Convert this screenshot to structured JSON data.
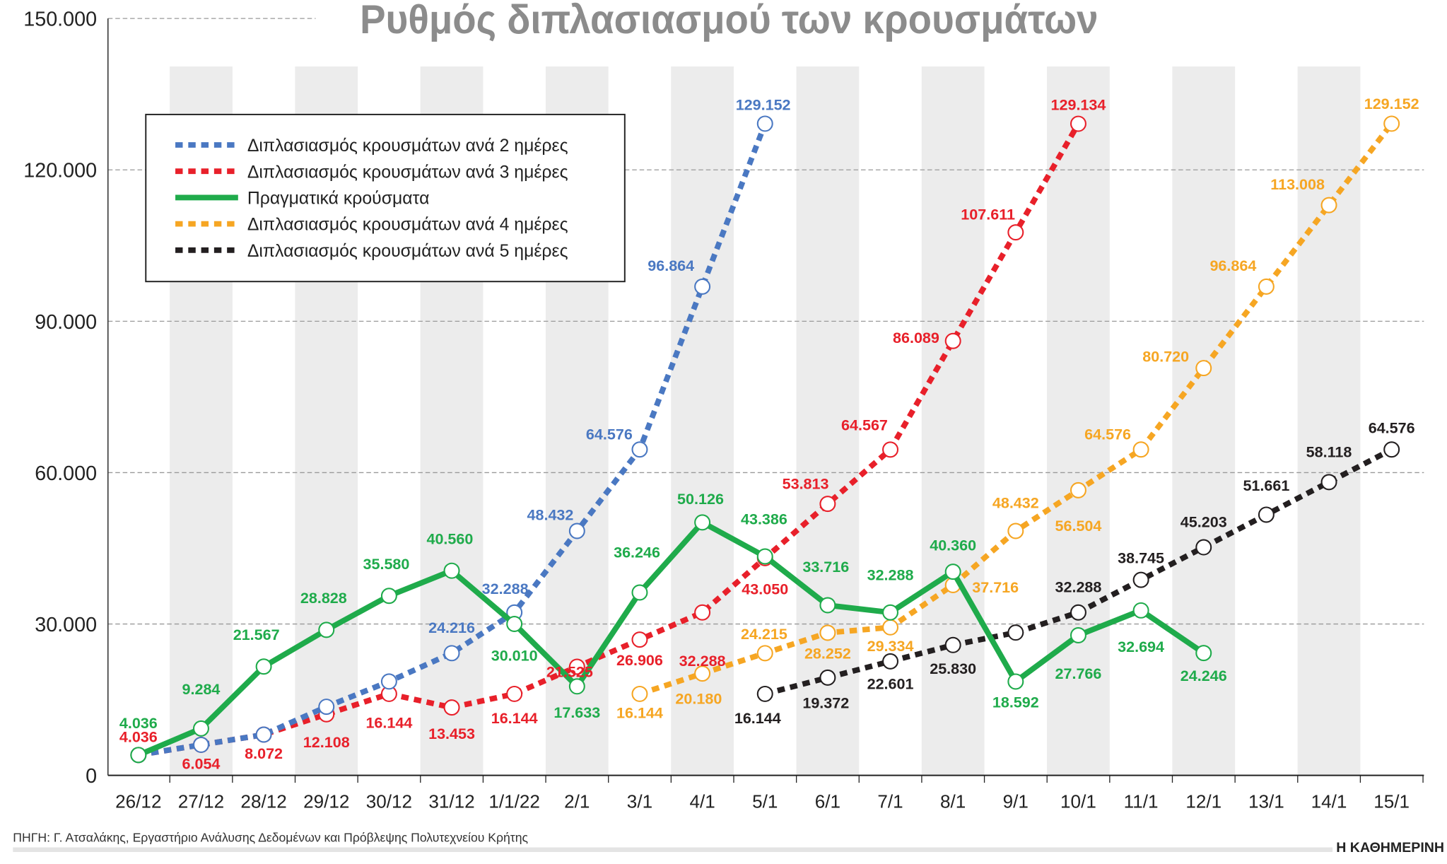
{
  "chart_data": {
    "type": "line",
    "title": "Ρυθμός διπλασιασμού των κρουσμάτων",
    "categories": [
      "26/12",
      "27/12",
      "28/12",
      "29/12",
      "30/12",
      "31/12",
      "1/1/22",
      "2/1",
      "3/1",
      "4/1",
      "5/1",
      "6/1",
      "7/1",
      "8/1",
      "9/1",
      "10/1",
      "11/1",
      "12/1",
      "13/1",
      "14/1",
      "15/1"
    ],
    "ylim": [
      0,
      150000
    ],
    "yticks": [
      0,
      30000,
      60000,
      90000,
      120000,
      150000
    ],
    "ytick_labels": [
      "0",
      "30.000",
      "60.000",
      "90.000",
      "120.000",
      "150.000"
    ],
    "grid": true,
    "legend_position": "top-left",
    "series": [
      {
        "name": "Διπλασιασμός κρουσμάτων ανά 2 ημέρες",
        "color": "#4a78c2",
        "style": "dotted",
        "values": [
          4036,
          6054,
          8072,
          13600,
          18600,
          24216,
          32288,
          48432,
          64576,
          96864,
          129152,
          null,
          null,
          null,
          null,
          null,
          null,
          null,
          null,
          null,
          null
        ],
        "labels": [
          null,
          null,
          null,
          null,
          null,
          "24.216",
          "32.288",
          "48.432",
          "64.576",
          "96.864",
          "129.152",
          null,
          null,
          null,
          null,
          null,
          null,
          null,
          null,
          null,
          null
        ]
      },
      {
        "name": "Διπλασιασμός κρουσμάτων ανά 3 ημέρες",
        "color": "#e8202a",
        "style": "dotted",
        "values": [
          4036,
          6054,
          8072,
          12108,
          16144,
          13453,
          16144,
          21525,
          26906,
          32288,
          43050,
          53813,
          64567,
          86089,
          107611,
          129134,
          null,
          null,
          null,
          null,
          null
        ],
        "labels": [
          "4.036",
          "6.054",
          "8.072",
          "12.108",
          "16.144",
          "13.453",
          "16.144",
          "21.525",
          "26.906",
          "32.288",
          "43.050",
          "53.813",
          "64.567",
          "86.089",
          "107.611",
          "129.134",
          null,
          null,
          null,
          null,
          null
        ]
      },
      {
        "name": "Πραγματικά κρούσματα",
        "color": "#1fab4b",
        "style": "solid",
        "values": [
          4036,
          9284,
          21567,
          28828,
          35580,
          40560,
          30010,
          17633,
          36246,
          50126,
          43386,
          33716,
          32288,
          40360,
          18592,
          27766,
          32694,
          24246,
          null,
          null,
          null
        ],
        "labels": [
          "4.036",
          "9.284",
          "21.567",
          "28.828",
          "35.580",
          "40.560",
          "30.010",
          "17.633",
          "36.246",
          "50.126",
          "43.386",
          "33.716",
          "32.288",
          "40.360",
          "18.592",
          "27.766",
          "32.694",
          "24.246",
          null,
          null,
          null
        ]
      },
      {
        "name": "Διπλασιασμός κρουσμάτων ανά 4 ημέρες",
        "color": "#f6a623",
        "style": "dotted",
        "values": [
          null,
          null,
          null,
          null,
          null,
          null,
          null,
          null,
          16144,
          20180,
          24215,
          28252,
          29334,
          37716,
          48432,
          56504,
          64576,
          80720,
          96864,
          113008,
          129152
        ],
        "labels": [
          null,
          null,
          null,
          null,
          null,
          null,
          null,
          null,
          "16.144",
          "20.180",
          "24.215",
          "28.252",
          "29.334",
          "37.716",
          "48.432",
          "56.504",
          "64.576",
          "80.720",
          "96.864",
          "113.008",
          "129.152"
        ]
      },
      {
        "name": "Διπλασιασμός κρουσμάτων ανά 5 ημέρες",
        "color": "#231f20",
        "style": "dotted",
        "values": [
          null,
          null,
          null,
          null,
          null,
          null,
          null,
          null,
          null,
          null,
          16144,
          19372,
          22601,
          25830,
          28300,
          32288,
          38745,
          45203,
          51661,
          58118,
          64576
        ],
        "labels": [
          null,
          null,
          null,
          null,
          null,
          null,
          null,
          null,
          null,
          null,
          "16.144",
          "19.372",
          "22.601",
          "25.830",
          null,
          "32.288",
          "38.745",
          "45.203",
          "51.661",
          "58.118",
          "64.576"
        ]
      }
    ]
  },
  "footer": {
    "source": "ΠΗΓΗ: Γ. Ατσαλάκης, Εργαστήριο Ανάλυσης Δεδομένων και Πρόβλεψης Πολυτεχνείου Κρήτης",
    "brand": "Η ΚΑΘΗΜΕΡΙΝΗ"
  }
}
